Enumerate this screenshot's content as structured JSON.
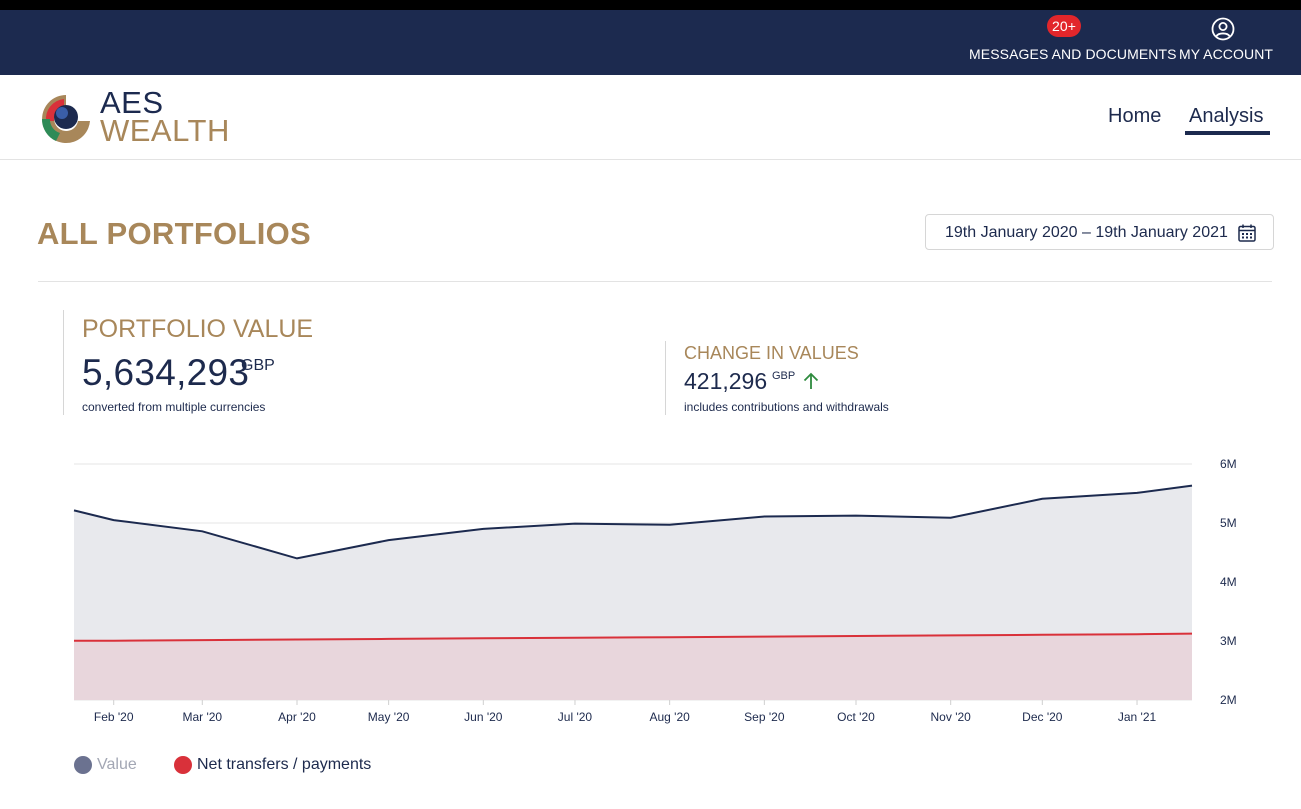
{
  "topbar": {
    "messages_label": "MESSAGES AND DOCUMENTS",
    "messages_badge": "20+",
    "account_label": "MY ACCOUNT",
    "bg_color": "#1c2a4f",
    "badge_color": "#e2262b"
  },
  "header": {
    "logo_line1": "AES",
    "logo_line2": "WEALTH",
    "nav": {
      "home": "Home",
      "analysis": "Analysis"
    },
    "active_nav": "Analysis"
  },
  "page": {
    "title": "ALL PORTFOLIOS",
    "date_range": "19th January 2020 – 19th January 2021",
    "accent_color": "#a8875a"
  },
  "stats": {
    "portfolio_value": {
      "heading": "PORTFOLIO VALUE",
      "value": "5,634,293",
      "currency": "GBP",
      "note": "converted from multiple currencies"
    },
    "change_in_values": {
      "heading": "CHANGE IN VALUES",
      "value": "421,296",
      "currency": "GBP",
      "note": "includes contributions and withdrawals",
      "trend_icon": "arrow-up-icon"
    }
  },
  "chart_data": {
    "type": "area",
    "x": [
      "2020-01-19",
      "2020-02-01",
      "2020-03-01",
      "2020-04-01",
      "2020-05-01",
      "2020-06-01",
      "2020-07-01",
      "2020-08-01",
      "2020-09-01",
      "2020-10-01",
      "2020-11-01",
      "2020-12-01",
      "2021-01-01",
      "2021-01-19"
    ],
    "tick_labels": [
      "Feb '20",
      "Mar '20",
      "Apr '20",
      "May '20",
      "Jun '20",
      "Jul '20",
      "Aug '20",
      "Sep '20",
      "Oct '20",
      "Nov '20",
      "Dec '20",
      "Jan '21"
    ],
    "y_ticks": [
      2000000,
      3000000,
      4000000,
      5000000,
      6000000
    ],
    "y_tick_labels": [
      "2M",
      "3M",
      "4M",
      "5M",
      "6M"
    ],
    "ylim": [
      2000000,
      6000000
    ],
    "y_axis_position": "right",
    "grid": true,
    "legend_position": "bottom-left",
    "series": [
      {
        "name": "Value",
        "color": "#1c2a4f",
        "fill": "#e8e9ed",
        "legend_color": "#6b7290",
        "values": [
          5213000,
          5050000,
          4860000,
          4400000,
          4710000,
          4900000,
          4990000,
          4970000,
          5110000,
          5125000,
          5090000,
          5410000,
          5510000,
          5634293
        ]
      },
      {
        "name": "Net transfers / payments",
        "color": "#d9313a",
        "fill": "#e8d6dc",
        "legend_color": "#d9313a",
        "values": [
          3005000,
          3005000,
          3015000,
          3025000,
          3035000,
          3045000,
          3055000,
          3065000,
          3075000,
          3085000,
          3095000,
          3105000,
          3115000,
          3125000
        ]
      }
    ]
  }
}
